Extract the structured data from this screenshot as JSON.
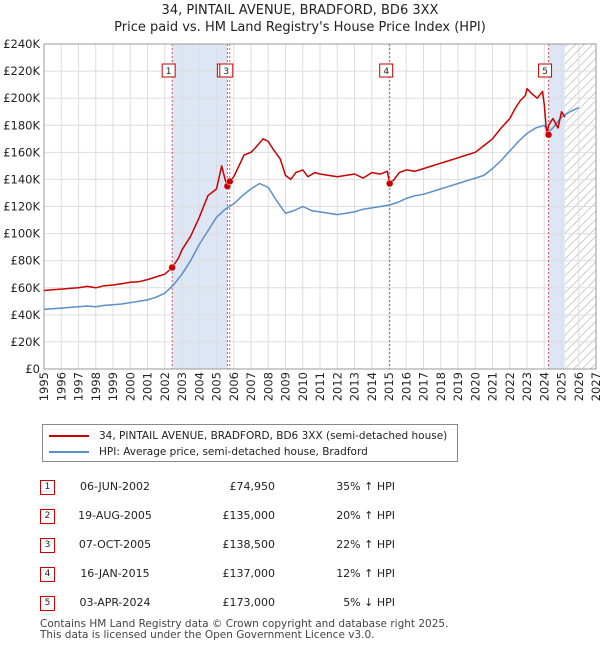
{
  "title_line1": "34, PINTAIL AVENUE, BRADFORD, BD6 3XX",
  "title_line2": "Price paid vs. HM Land Registry's House Price Index (HPI)",
  "chart_data": {
    "type": "line",
    "title": "34, PINTAIL AVENUE, BRADFORD, BD6 3XX - Price paid vs. HM Land Registry's House Price Index (HPI)",
    "xlim": [
      1995,
      2027
    ],
    "ylim": [
      0,
      240000
    ],
    "x_ticks": [
      "1995",
      "1996",
      "1997",
      "1998",
      "1999",
      "2000",
      "2001",
      "2002",
      "2003",
      "2004",
      "2005",
      "2006",
      "2007",
      "2008",
      "2009",
      "2010",
      "2011",
      "2012",
      "2013",
      "2014",
      "2015",
      "2016",
      "2017",
      "2018",
      "2019",
      "2020",
      "2021",
      "2022",
      "2023",
      "2024",
      "2025",
      "2026",
      "2027"
    ],
    "y_ticks": [
      {
        "value": 0,
        "label": "£0"
      },
      {
        "value": 20000,
        "label": "£20K"
      },
      {
        "value": 40000,
        "label": "£40K"
      },
      {
        "value": 60000,
        "label": "£60K"
      },
      {
        "value": 80000,
        "label": "£80K"
      },
      {
        "value": 100000,
        "label": "£100K"
      },
      {
        "value": 120000,
        "label": "£120K"
      },
      {
        "value": 140000,
        "label": "£140K"
      },
      {
        "value": 160000,
        "label": "£160K"
      },
      {
        "value": 180000,
        "label": "£180K"
      },
      {
        "value": 200000,
        "label": "£200K"
      },
      {
        "value": 220000,
        "label": "£220K"
      },
      {
        "value": 240000,
        "label": "£240K"
      }
    ],
    "colors": {
      "property": "#cc0000",
      "hpi": "#5b8fc9",
      "shade": "#dde6f5",
      "grid": "#dddddd"
    },
    "forecast_start": 2025.2,
    "series": [
      {
        "name": "34, PINTAIL AVENUE, BRADFORD, BD6 3XX (semi-detached house)",
        "color": "#cc0000",
        "x": [
          1995,
          1995.5,
          1996,
          1996.5,
          1997,
          1997.5,
          1998,
          1998.5,
          1999,
          1999.5,
          2000,
          2000.5,
          2001,
          2001.5,
          2002,
          2002.43,
          2002.8,
          2003,
          2003.5,
          2004,
          2004.5,
          2005,
          2005.3,
          2005.5,
          2005.63,
          2005.77,
          2006,
          2006.3,
          2006.6,
          2007,
          2007.3,
          2007.7,
          2008,
          2008.3,
          2008.7,
          2009,
          2009.3,
          2009.6,
          2010,
          2010.3,
          2010.7,
          2011,
          2011.5,
          2012,
          2012.5,
          2013,
          2013.5,
          2014,
          2014.5,
          2014.9,
          2015.04,
          2015.3,
          2015.6,
          2016,
          2016.5,
          2017,
          2017.5,
          2018,
          2018.5,
          2019,
          2019.5,
          2020,
          2020.5,
          2021,
          2021.5,
          2022,
          2022.3,
          2022.6,
          2022.9,
          2023,
          2023.3,
          2023.6,
          2023.9,
          2024,
          2024.15,
          2024.25,
          2024.5,
          2024.8,
          2025,
          2025.2
        ],
        "y": [
          58000,
          58500,
          59000,
          59500,
          60000,
          61000,
          60000,
          61500,
          62000,
          63000,
          64000,
          64500,
          66000,
          68000,
          70000,
          74950,
          82000,
          88000,
          98000,
          112000,
          128000,
          133000,
          150000,
          140000,
          135000,
          138500,
          142000,
          150000,
          158000,
          160000,
          164000,
          170000,
          168000,
          162000,
          155000,
          143000,
          140000,
          145000,
          147000,
          142000,
          145000,
          144000,
          143000,
          142000,
          143000,
          144000,
          141000,
          145000,
          144000,
          146000,
          137000,
          140000,
          145000,
          147000,
          146000,
          148000,
          150000,
          152000,
          154000,
          156000,
          158000,
          160000,
          165000,
          170000,
          178000,
          185000,
          192000,
          198000,
          202000,
          207000,
          203000,
          200000,
          205000,
          195000,
          173000,
          180000,
          185000,
          178000,
          190000,
          186000
        ]
      },
      {
        "name": "HPI: Average price, semi-detached house, Bradford",
        "color": "#5b8fc9",
        "x": [
          1995,
          1995.5,
          1996,
          1996.5,
          1997,
          1997.5,
          1998,
          1998.5,
          1999,
          1999.5,
          2000,
          2000.5,
          2001,
          2001.5,
          2002,
          2002.5,
          2003,
          2003.5,
          2004,
          2004.5,
          2005,
          2005.5,
          2006,
          2006.5,
          2007,
          2007.5,
          2008,
          2008.5,
          2009,
          2009.5,
          2010,
          2010.5,
          2011,
          2011.5,
          2012,
          2012.5,
          2013,
          2013.5,
          2014,
          2014.5,
          2015,
          2015.5,
          2016,
          2016.5,
          2017,
          2017.5,
          2018,
          2018.5,
          2019,
          2019.5,
          2020,
          2020.5,
          2021,
          2021.5,
          2022,
          2022.5,
          2023,
          2023.5,
          2024,
          2024.25,
          2024.5,
          2025,
          2025.5,
          2026
        ],
        "y": [
          44000,
          44500,
          45000,
          45500,
          46000,
          46500,
          46000,
          47000,
          47500,
          48000,
          49000,
          50000,
          51000,
          53000,
          56000,
          62000,
          70000,
          80000,
          92000,
          102000,
          112000,
          118000,
          122000,
          128000,
          133000,
          137000,
          134000,
          124000,
          115000,
          117000,
          120000,
          117000,
          116000,
          115000,
          114000,
          115000,
          116000,
          118000,
          119000,
          120000,
          121000,
          123000,
          126000,
          128000,
          129000,
          131000,
          133000,
          135000,
          137000,
          139000,
          141000,
          143000,
          148000,
          154000,
          161000,
          168000,
          174000,
          178000,
          180000,
          175000,
          178000,
          186000,
          190000,
          193000
        ]
      }
    ],
    "transactions": [
      {
        "num": "1",
        "x": 2002.43,
        "y": 74950
      },
      {
        "num": "2",
        "x": 2005.63,
        "y": 135000
      },
      {
        "num": "3",
        "x": 2005.77,
        "y": 138500
      },
      {
        "num": "4",
        "x": 2015.04,
        "y": 137000
      },
      {
        "num": "5",
        "x": 2024.25,
        "y": 173000
      }
    ]
  },
  "legend": {
    "property_label": "34, PINTAIL AVENUE, BRADFORD, BD6 3XX (semi-detached house)",
    "hpi_label": "HPI: Average price, semi-detached house, Bradford"
  },
  "table": [
    {
      "num": "1",
      "date": "06-JUN-2002",
      "price": "£74,950",
      "hpi": "35% ↑ HPI"
    },
    {
      "num": "2",
      "date": "19-AUG-2005",
      "price": "£135,000",
      "hpi": "20% ↑ HPI"
    },
    {
      "num": "3",
      "date": "07-OCT-2005",
      "price": "£138,500",
      "hpi": "22% ↑ HPI"
    },
    {
      "num": "4",
      "date": "16-JAN-2015",
      "price": "£137,000",
      "hpi": "12% ↑ HPI"
    },
    {
      "num": "5",
      "date": "03-APR-2024",
      "price": "£173,000",
      "hpi": "5% ↓ HPI"
    }
  ],
  "footer": {
    "line1": "Contains HM Land Registry data © Crown copyright and database right 2025.",
    "line2": "This data is licensed under the Open Government Licence v3.0."
  }
}
